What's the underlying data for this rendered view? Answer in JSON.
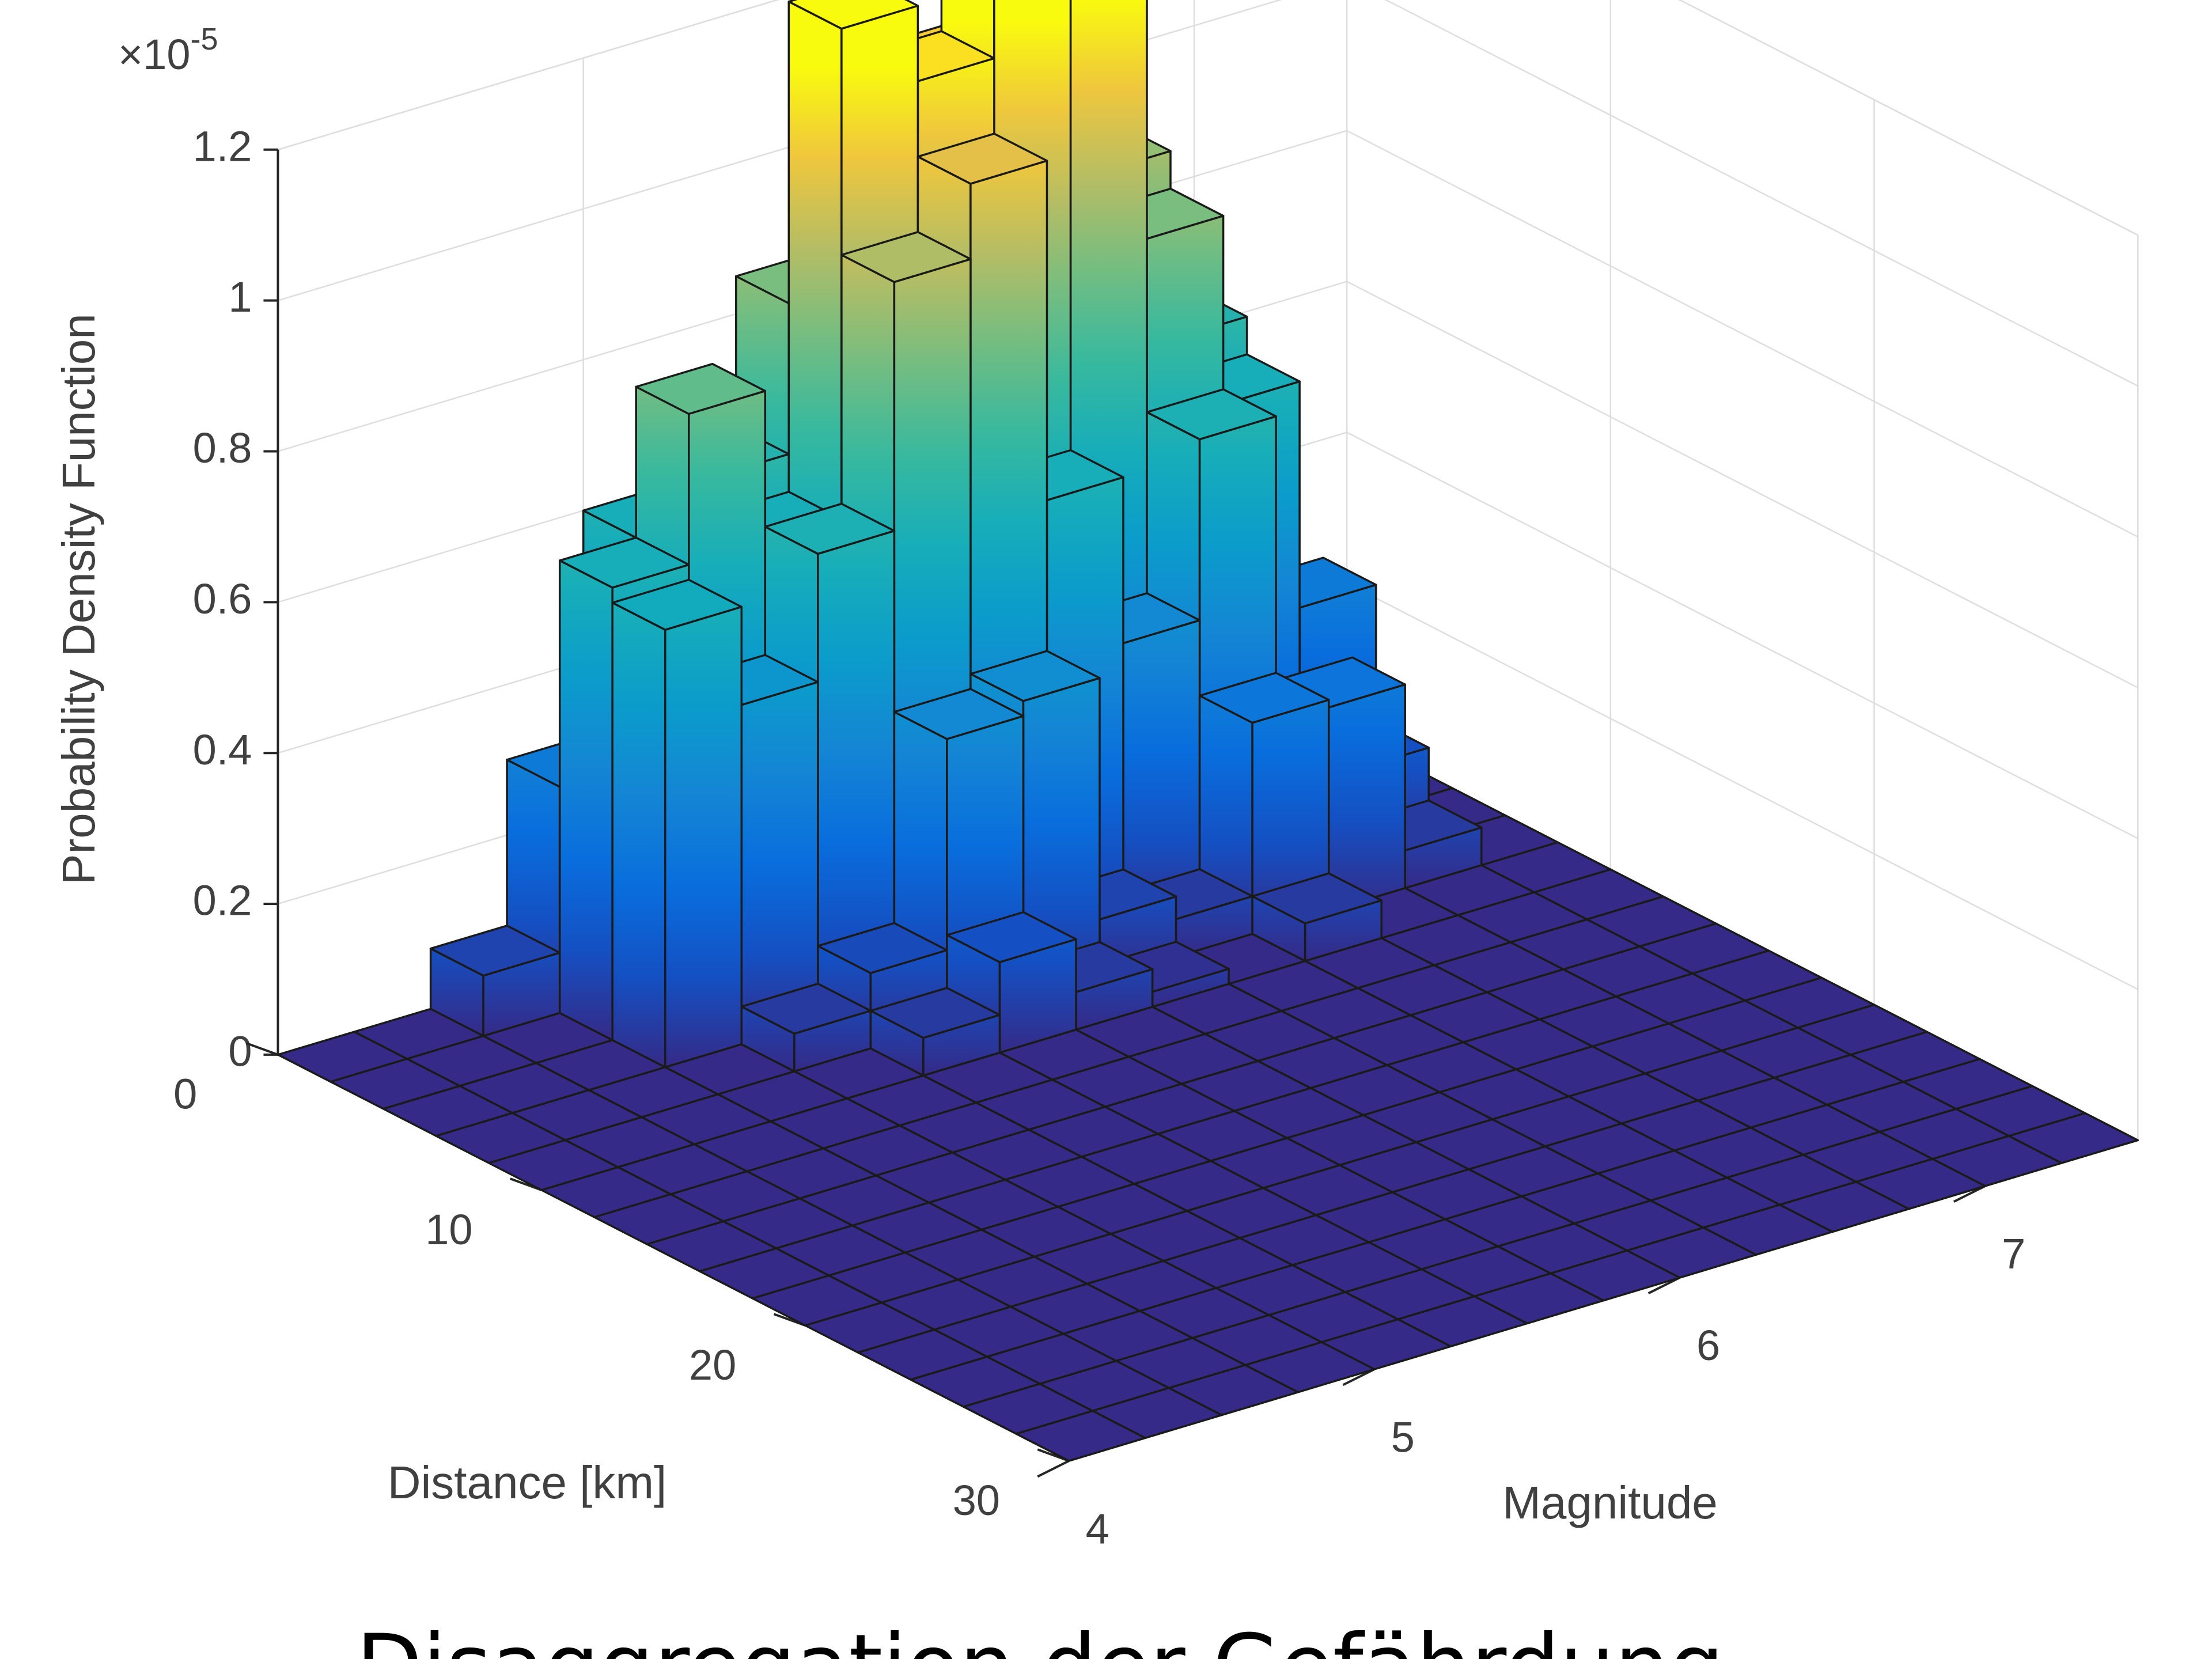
{
  "chart_data": {
    "type": "bar3",
    "caption": "Disaggregation der Gefährdung",
    "xlabel": "Distance [km]",
    "ylabel": "Magnitude",
    "zlabel": "Probability Density Function",
    "z_multiplier": "×10",
    "z_exponent": "-5",
    "xbins": [
      0,
      2,
      4,
      6,
      8,
      10,
      12,
      14,
      16,
      18,
      20,
      22,
      24,
      26,
      28,
      30
    ],
    "ybins": [
      4,
      4.25,
      4.5,
      4.75,
      5,
      5.25,
      5.5,
      5.75,
      6,
      6.25,
      6.5,
      6.75,
      7,
      7.25,
      7.5
    ],
    "values": [
      [
        0,
        0,
        0.08,
        0.3,
        0.6,
        0.65,
        0.85,
        0.95,
        1.1,
        1.05,
        0.9,
        0.65,
        0.2,
        0
      ],
      [
        0,
        0,
        0,
        0.6,
        0.8,
        0.6,
        1.25,
        1.15,
        1.25,
        1.2,
        0.85,
        0.6,
        0.3,
        0
      ],
      [
        0,
        0,
        0,
        0.58,
        0.45,
        0.62,
        0.95,
        1.05,
        0.6,
        0.38,
        0.62,
        0.2,
        0.12,
        0
      ],
      [
        0,
        0,
        0,
        0,
        0.05,
        0.1,
        0.38,
        0.4,
        0.08,
        0.05,
        0.28,
        0.27,
        0.05,
        0
      ],
      [
        0,
        0,
        0,
        0,
        0,
        0.05,
        0.12,
        0.05,
        0.02,
        0,
        0.05,
        0,
        0,
        0
      ],
      [
        0,
        0,
        0,
        0,
        0,
        0,
        0,
        0,
        0,
        0,
        0,
        0,
        0,
        0
      ],
      [
        0,
        0,
        0,
        0,
        0,
        0,
        0,
        0,
        0,
        0,
        0,
        0,
        0,
        0
      ],
      [
        0,
        0,
        0,
        0,
        0,
        0,
        0,
        0,
        0,
        0,
        0,
        0,
        0,
        0
      ],
      [
        0,
        0,
        0,
        0,
        0,
        0,
        0,
        0,
        0,
        0,
        0,
        0,
        0,
        0
      ],
      [
        0,
        0,
        0,
        0,
        0,
        0,
        0,
        0,
        0,
        0,
        0,
        0,
        0,
        0
      ],
      [
        0,
        0,
        0,
        0,
        0,
        0,
        0,
        0,
        0,
        0,
        0,
        0,
        0,
        0
      ],
      [
        0,
        0,
        0,
        0,
        0,
        0,
        0,
        0,
        0,
        0,
        0,
        0,
        0,
        0
      ],
      [
        0,
        0,
        0,
        0,
        0,
        0,
        0,
        0,
        0,
        0,
        0,
        0,
        0,
        0
      ],
      [
        0,
        0,
        0,
        0,
        0,
        0,
        0,
        0,
        0,
        0,
        0,
        0,
        0,
        0
      ],
      [
        0,
        0,
        0,
        0,
        0,
        0,
        0,
        0,
        0,
        0,
        0,
        0,
        0,
        0
      ]
    ],
    "xlim": [
      0,
      30
    ],
    "xticks": [
      0,
      10,
      20,
      30
    ],
    "ylim": [
      4,
      7.5
    ],
    "yticks": [
      4,
      5,
      6,
      7
    ],
    "zlim": [
      0,
      1.2
    ],
    "zticks": [
      0,
      0.2,
      0.4,
      0.6,
      0.8,
      1,
      1.2
    ],
    "grid": true,
    "edge_color": "#1a1a1a"
  }
}
